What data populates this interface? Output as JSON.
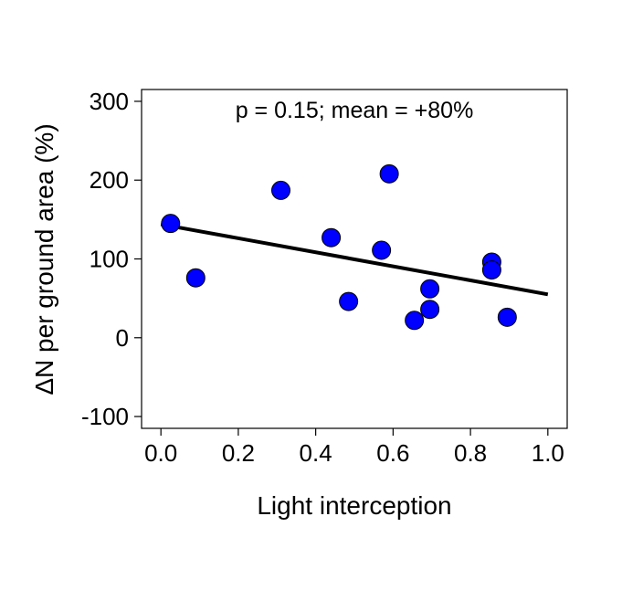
{
  "chart_data": {
    "type": "scatter",
    "annotation": "p = 0.15; mean = +80%",
    "xlabel": "Light interception",
    "ylabel": "ΔN per ground area (%)",
    "xlim": [
      -0.05,
      1.05
    ],
    "ylim": [
      -115,
      315
    ],
    "x_ticks": [
      0.0,
      0.2,
      0.4,
      0.6,
      0.8,
      1.0
    ],
    "x_tick_labels": [
      "0.0",
      "0.2",
      "0.4",
      "0.6",
      "0.8",
      "1.0"
    ],
    "y_ticks": [
      -100,
      0,
      100,
      200,
      300
    ],
    "y_tick_labels": [
      "-100",
      "0",
      "100",
      "200",
      "300"
    ],
    "grid": false,
    "points": [
      {
        "x": 0.025,
        "y": 145
      },
      {
        "x": 0.09,
        "y": 76
      },
      {
        "x": 0.31,
        "y": 187
      },
      {
        "x": 0.44,
        "y": 127
      },
      {
        "x": 0.485,
        "y": 46
      },
      {
        "x": 0.57,
        "y": 111
      },
      {
        "x": 0.59,
        "y": 208
      },
      {
        "x": 0.655,
        "y": 22
      },
      {
        "x": 0.695,
        "y": 62
      },
      {
        "x": 0.695,
        "y": 36
      },
      {
        "x": 0.855,
        "y": 96
      },
      {
        "x": 0.855,
        "y": 86
      },
      {
        "x": 0.895,
        "y": 26
      }
    ],
    "fit_line": {
      "x": [
        0.0,
        1.0
      ],
      "y": [
        144,
        55
      ]
    },
    "point_color": "#0000ff",
    "point_edge_color": "#000000",
    "line_color": "#000000"
  }
}
